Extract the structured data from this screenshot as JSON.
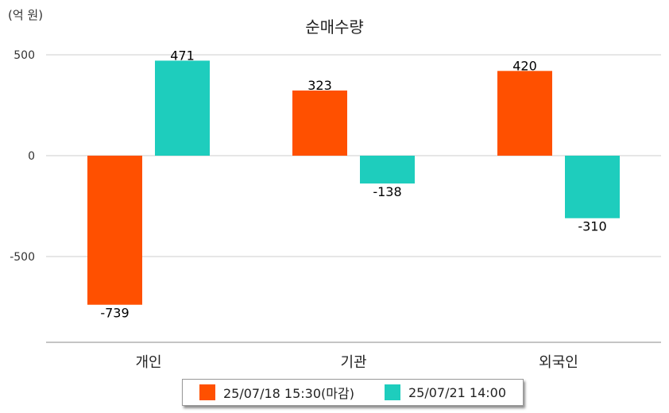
{
  "chart_data": {
    "type": "bar",
    "title": "순매수량",
    "unit_label": "(억 원)",
    "categories": [
      "개인",
      "기관",
      "외국인"
    ],
    "series": [
      {
        "name": "25/07/18 15:30(마감)",
        "color": "#ff5000",
        "values": [
          -739,
          323,
          420
        ]
      },
      {
        "name": "25/07/21 14:00",
        "color": "#1ecdbd",
        "values": [
          471,
          -138,
          -310
        ]
      }
    ],
    "yticks": [
      500,
      0,
      -500
    ],
    "ylim": [
      -925,
      500
    ],
    "grid": true,
    "legend_position": "bottom-center"
  }
}
